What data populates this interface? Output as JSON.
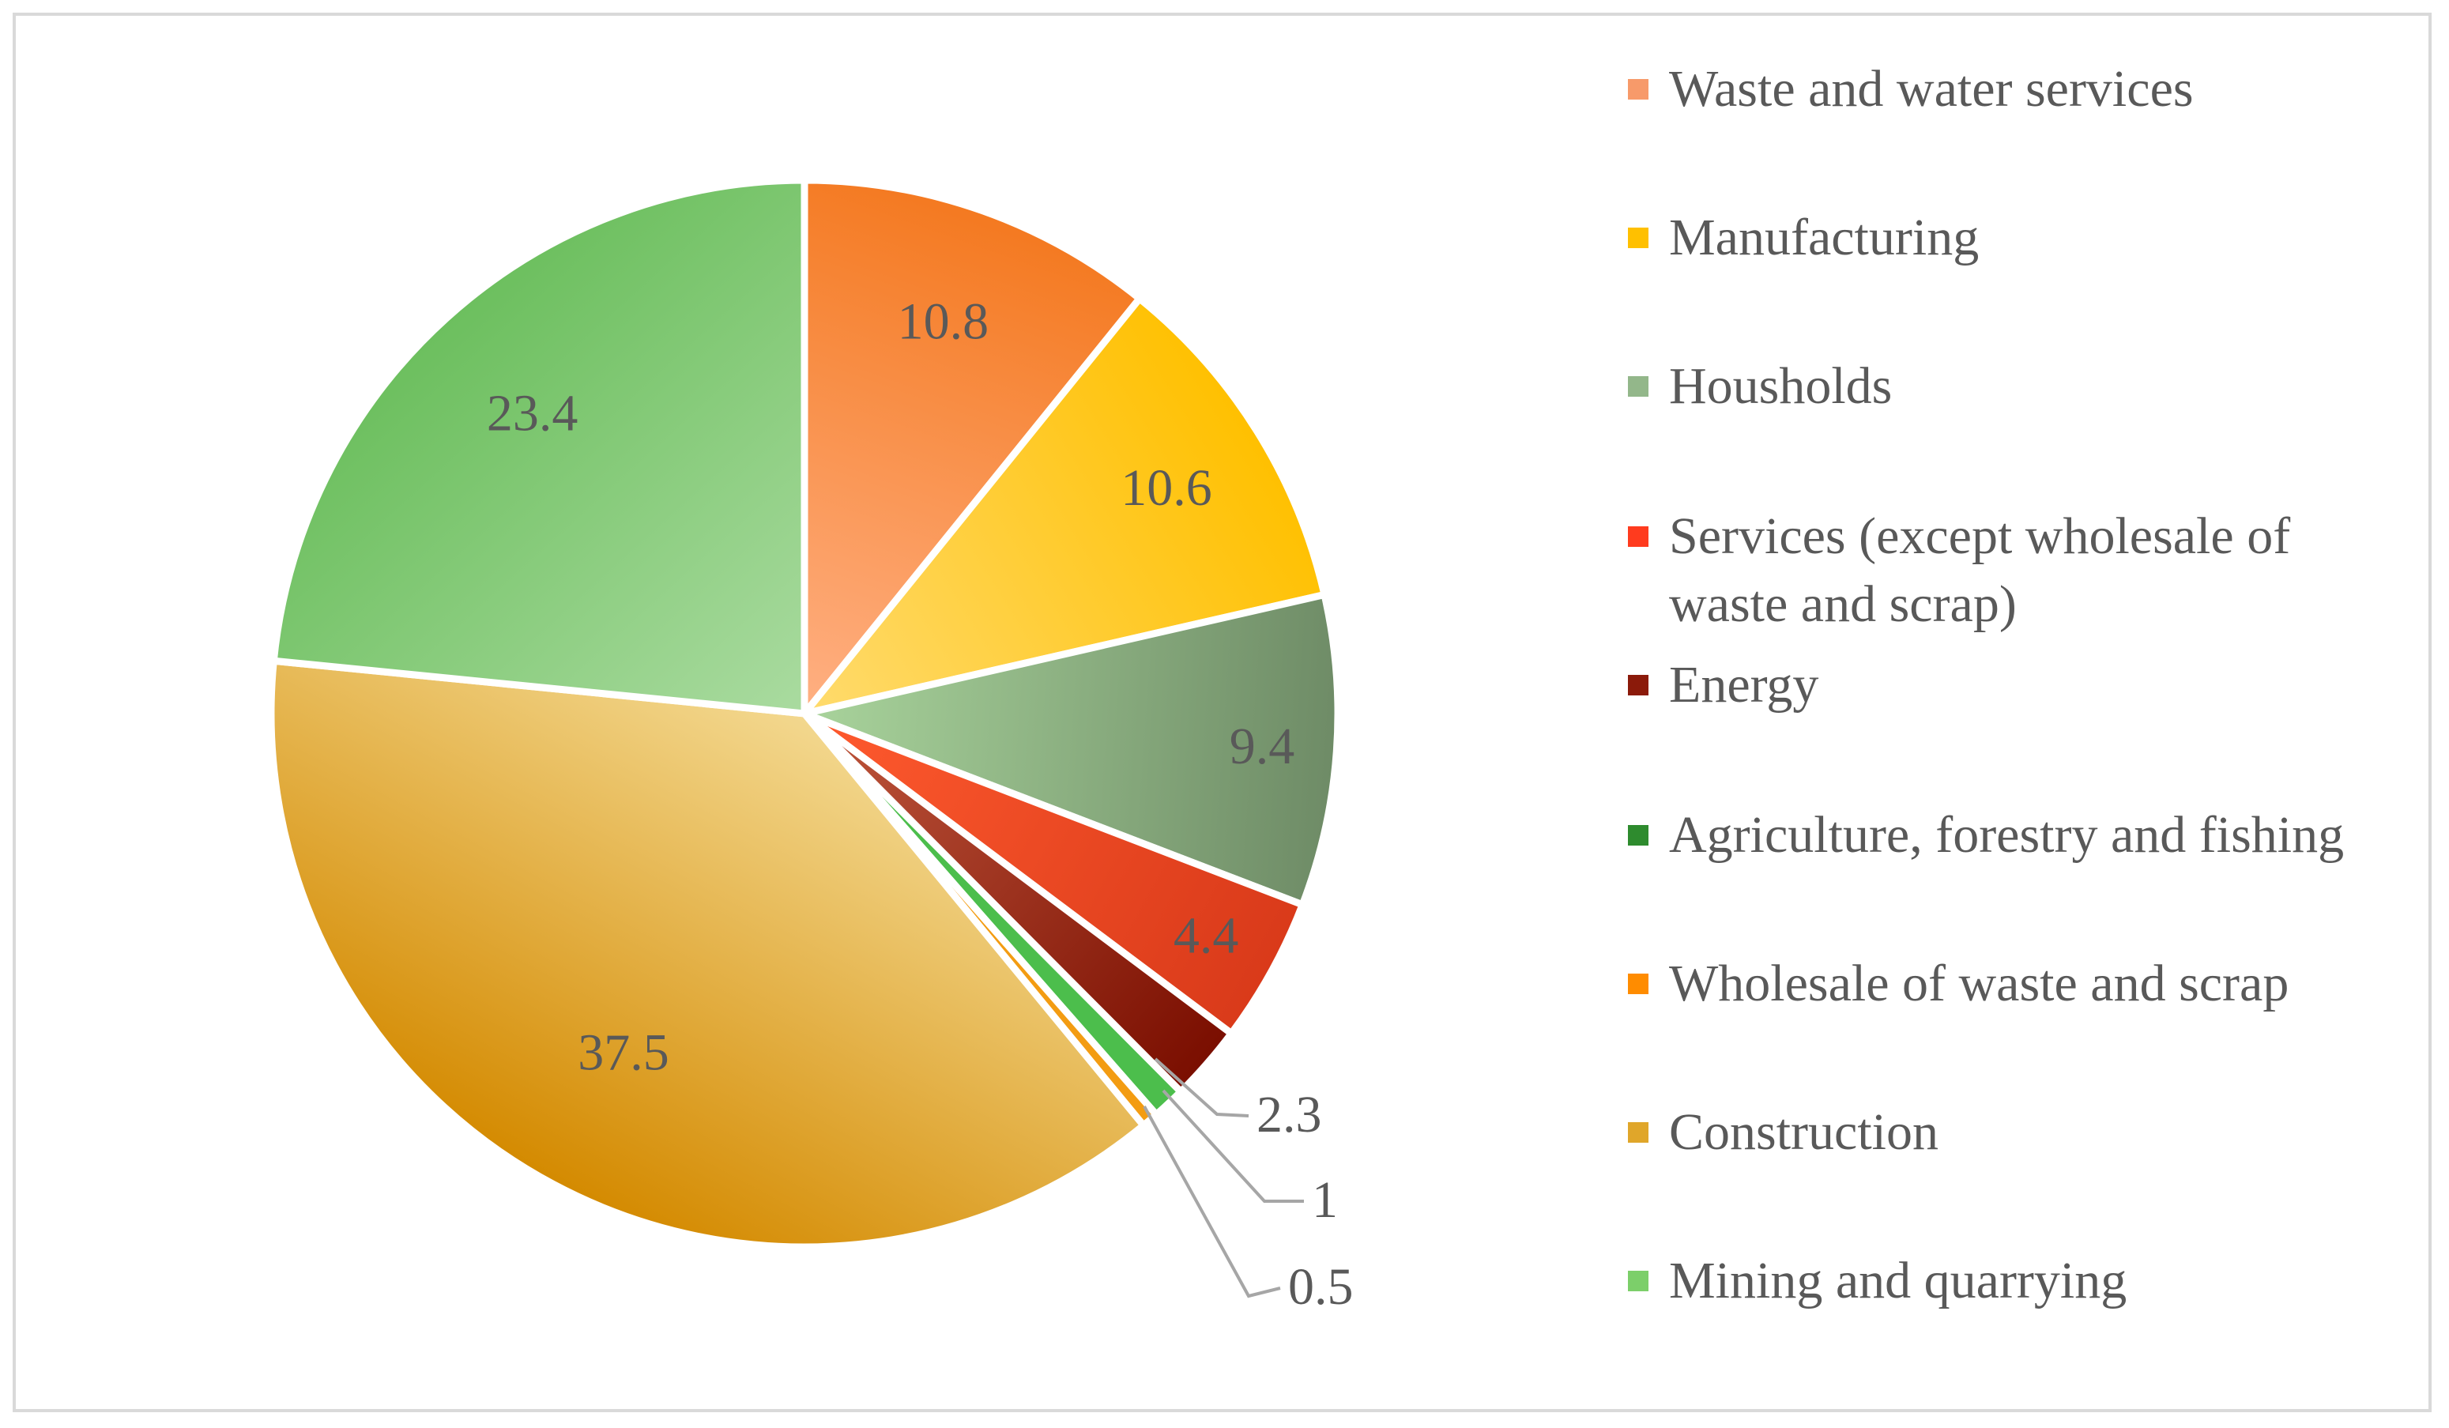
{
  "chart_data": {
    "type": "pie",
    "title": "",
    "slices": [
      {
        "name": "Waste and water services",
        "value": 10.8,
        "label": "10.8",
        "color_start": "#f47920",
        "color_end": "#ffb083"
      },
      {
        "name": "Manufacturing",
        "value": 10.6,
        "label": "10.6",
        "color_start": "#ffc000",
        "color_end": "#ffdb6e"
      },
      {
        "name": "Housholds",
        "value": 9.4,
        "label": "9.4",
        "color_start": "#6e8b66",
        "color_end": "#a9d49c"
      },
      {
        "name": "Services (except wholesale of waste and scrap)",
        "value": 4.4,
        "label": "4.4",
        "color_start": "#d93a1a",
        "color_end": "#ff5a2e"
      },
      {
        "name": "Energy",
        "value": 2.3,
        "label": "2.3",
        "color_start": "#7a0e00",
        "color_end": "#c0583e"
      },
      {
        "name": "Agriculture, forestry and fishing",
        "value": 1.0,
        "label": "1",
        "color_start": "#4cbe4c",
        "color_end": "#4cbe4c"
      },
      {
        "name": "Wholesale of waste and scrap",
        "value": 0.5,
        "label": "0.5",
        "color_start": "#f39c12",
        "color_end": "#f39c12"
      },
      {
        "name": "Construction",
        "value": 37.5,
        "label": "37.5",
        "color_start": "#d48a00",
        "color_end": "#f3d88f"
      },
      {
        "name": "Mining and quarrying",
        "value": 23.4,
        "label": "23.4",
        "color_start": "#6cbf5e",
        "color_end": "#aadba0"
      }
    ],
    "legend": [
      {
        "label": "Waste and water services",
        "color": "#f79a6a"
      },
      {
        "label": "Manufacturing",
        "color": "#ffc000"
      },
      {
        "label": "Housholds",
        "color": "#93b78a"
      },
      {
        "label": "Services (except wholesale of waste and scrap)",
        "color": "#ff3b1e"
      },
      {
        "label": "Energy",
        "color": "#8b1a0a"
      },
      {
        "label": "Agriculture, forestry and fishing",
        "color": "#2e8b2e"
      },
      {
        "label": "Wholesale of waste and scrap",
        "color": "#ff8c00"
      },
      {
        "label": "Construction",
        "color": "#e0a62a"
      },
      {
        "label": "Mining and quarrying",
        "color": "#7ccf6a"
      }
    ],
    "legend_position": "right"
  }
}
